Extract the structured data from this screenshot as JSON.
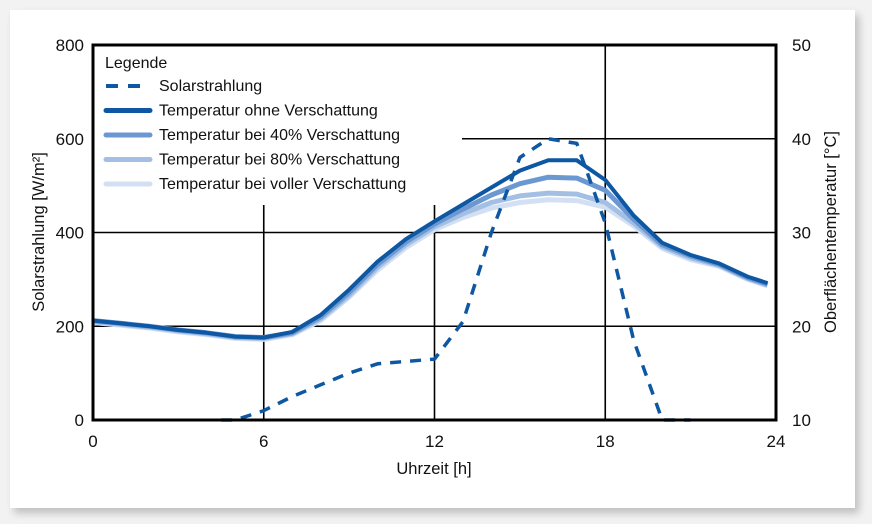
{
  "chart_data": {
    "type": "line",
    "title": "",
    "xlabel": "Uhrzeit [h]",
    "ylabel": "Solarstrahlung [W/m²]",
    "ylabel_right": "Oberflächentemperatur [°C]",
    "xlim": [
      0,
      24
    ],
    "ylim": [
      0,
      800
    ],
    "ylim_right": [
      10,
      50
    ],
    "x_ticks": [
      "0",
      "6",
      "12",
      "18",
      "24"
    ],
    "y_ticks": [
      "0",
      "200",
      "400",
      "600",
      "800"
    ],
    "y_ticks_right": [
      "10",
      "20",
      "30",
      "40",
      "50"
    ],
    "grid": true,
    "legend_title": "Legende",
    "legend_position": "upper-left",
    "series": [
      {
        "name": "Solarstrahlung",
        "axis": "left",
        "style": "dashed",
        "color": "#0d57a3",
        "x": [
          4.5,
          5,
          6,
          7,
          8,
          9,
          10,
          11,
          12,
          13,
          14,
          15,
          16,
          17,
          18,
          19,
          20,
          21
        ],
        "values": [
          0,
          0,
          20,
          50,
          75,
          100,
          120,
          125,
          130,
          210,
          400,
          560,
          600,
          590,
          420,
          170,
          0,
          0
        ]
      },
      {
        "name": "Temperatur ohne Verschattung",
        "axis": "right",
        "style": "solid",
        "color": "#0d57a3",
        "x": [
          0,
          1,
          2,
          3,
          4,
          5,
          6,
          7,
          8,
          9,
          10,
          11,
          12,
          13,
          14,
          15,
          16,
          17,
          18,
          19,
          20,
          21,
          22,
          23,
          23.7
        ],
        "values": [
          20.6,
          20.3,
          20.0,
          19.6,
          19.3,
          18.9,
          18.8,
          19.4,
          21.2,
          23.9,
          26.9,
          29.3,
          31.2,
          33.0,
          34.8,
          36.6,
          37.7,
          37.7,
          35.6,
          31.8,
          28.9,
          27.6,
          26.7,
          25.3,
          24.6
        ]
      },
      {
        "name": "Temperatur bei 40% Verschattung",
        "axis": "right",
        "style": "solid",
        "color": "#6c98d2",
        "x": [
          0,
          1,
          2,
          3,
          4,
          5,
          6,
          7,
          8,
          9,
          10,
          11,
          12,
          13,
          14,
          15,
          16,
          17,
          18,
          19,
          20,
          21,
          22,
          23,
          23.7
        ],
        "values": [
          20.6,
          20.3,
          20.0,
          19.6,
          19.3,
          18.9,
          18.8,
          19.3,
          21.0,
          23.6,
          26.6,
          29.0,
          30.9,
          32.5,
          34.0,
          35.2,
          35.9,
          35.8,
          34.5,
          31.4,
          28.7,
          27.5,
          26.6,
          25.2,
          24.5
        ]
      },
      {
        "name": "Temperatur bei 80% Verschattung",
        "axis": "right",
        "style": "solid",
        "color": "#a3bfe4",
        "x": [
          0,
          1,
          2,
          3,
          4,
          5,
          6,
          7,
          8,
          9,
          10,
          11,
          12,
          13,
          14,
          15,
          16,
          17,
          18,
          19,
          20,
          21,
          22,
          23,
          23.7
        ],
        "values": [
          20.5,
          20.2,
          19.9,
          19.5,
          19.2,
          18.8,
          18.7,
          19.2,
          20.8,
          23.3,
          26.3,
          28.7,
          30.6,
          32.0,
          33.2,
          33.9,
          34.2,
          34.1,
          33.2,
          31.0,
          28.5,
          27.3,
          26.5,
          25.1,
          24.4
        ]
      },
      {
        "name": "Temperatur bei voller Verschattung",
        "axis": "right",
        "style": "solid",
        "color": "#d3e0f3",
        "x": [
          0,
          1,
          2,
          3,
          4,
          5,
          6,
          7,
          8,
          9,
          10,
          11,
          12,
          13,
          14,
          15,
          16,
          17,
          18,
          19,
          20,
          21,
          22,
          23,
          23.7
        ],
        "values": [
          20.4,
          20.1,
          19.8,
          19.4,
          19.1,
          18.7,
          18.6,
          19.1,
          20.6,
          23.1,
          26.0,
          28.4,
          30.3,
          31.6,
          32.6,
          33.2,
          33.5,
          33.4,
          32.7,
          30.7,
          28.3,
          27.1,
          26.4,
          25.0,
          24.3
        ]
      }
    ]
  },
  "legend": {
    "title": "Legende",
    "items": [
      "Solarstrahlung",
      "Temperatur ohne Verschattung",
      "Temperatur bei 40% Verschattung",
      "Temperatur bei 80% Verschattung",
      "Temperatur bei voller Verschattung"
    ]
  }
}
